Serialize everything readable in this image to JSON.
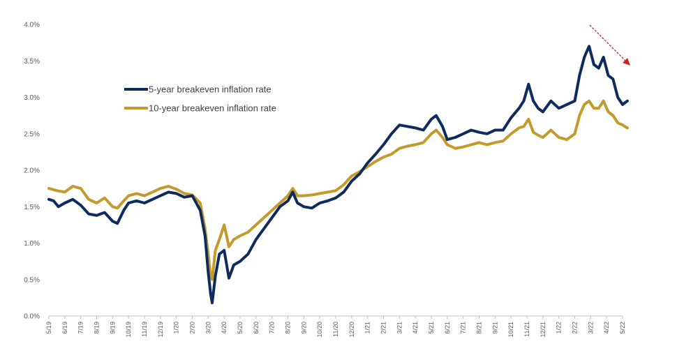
{
  "chart_data": {
    "type": "line",
    "title": "",
    "xlabel": "",
    "ylabel": "",
    "ylim": [
      0,
      4.0
    ],
    "y_ticks": [
      "0.0%",
      "0.5%",
      "1.0%",
      "1.5%",
      "2.0%",
      "2.5%",
      "3.0%",
      "3.5%",
      "4.0%"
    ],
    "x_ticks": [
      "5/19",
      "6/19",
      "7/19",
      "8/19",
      "9/19",
      "10/19",
      "11/19",
      "12/19",
      "1/20",
      "2/20",
      "3/20",
      "4/20",
      "5/20",
      "6/20",
      "7/20",
      "8/20",
      "9/20",
      "10/20",
      "11/20",
      "12/20",
      "1/21",
      "2/21",
      "3/21",
      "4/21",
      "5/21",
      "6/21",
      "7/21",
      "8/21",
      "9/21",
      "10/21",
      "11/21",
      "12/21",
      "1/22",
      "2/22",
      "3/22",
      "4/22",
      "5/22"
    ],
    "legend_position": "upper-left",
    "series": [
      {
        "name": "5-year breakeven inflation rate",
        "color": "#0d2b5e",
        "points": [
          [
            0,
            1.6
          ],
          [
            0.3,
            1.58
          ],
          [
            0.6,
            1.5
          ],
          [
            1,
            1.55
          ],
          [
            1.5,
            1.6
          ],
          [
            2,
            1.52
          ],
          [
            2.5,
            1.4
          ],
          [
            3,
            1.38
          ],
          [
            3.5,
            1.42
          ],
          [
            4,
            1.3
          ],
          [
            4.3,
            1.27
          ],
          [
            4.7,
            1.45
          ],
          [
            5,
            1.55
          ],
          [
            5.5,
            1.58
          ],
          [
            6,
            1.55
          ],
          [
            6.5,
            1.6
          ],
          [
            7,
            1.65
          ],
          [
            7.5,
            1.7
          ],
          [
            8,
            1.68
          ],
          [
            8.5,
            1.63
          ],
          [
            9,
            1.65
          ],
          [
            9.5,
            1.45
          ],
          [
            9.8,
            1.1
          ],
          [
            10.0,
            0.6
          ],
          [
            10.15,
            0.3
          ],
          [
            10.25,
            0.18
          ],
          [
            10.45,
            0.55
          ],
          [
            10.7,
            0.85
          ],
          [
            11,
            0.9
          ],
          [
            11.3,
            0.52
          ],
          [
            11.6,
            0.7
          ],
          [
            12,
            0.75
          ],
          [
            12.5,
            0.85
          ],
          [
            13,
            1.05
          ],
          [
            13.5,
            1.2
          ],
          [
            14,
            1.35
          ],
          [
            14.5,
            1.5
          ],
          [
            15,
            1.58
          ],
          [
            15.3,
            1.7
          ],
          [
            15.6,
            1.55
          ],
          [
            16,
            1.5
          ],
          [
            16.5,
            1.48
          ],
          [
            17,
            1.55
          ],
          [
            17.5,
            1.58
          ],
          [
            18,
            1.62
          ],
          [
            18.5,
            1.7
          ],
          [
            19,
            1.85
          ],
          [
            19.5,
            1.95
          ],
          [
            20,
            2.1
          ],
          [
            20.5,
            2.22
          ],
          [
            21,
            2.35
          ],
          [
            21.5,
            2.5
          ],
          [
            22,
            2.62
          ],
          [
            22.5,
            2.6
          ],
          [
            23,
            2.58
          ],
          [
            23.5,
            2.55
          ],
          [
            24,
            2.7
          ],
          [
            24.3,
            2.75
          ],
          [
            24.7,
            2.6
          ],
          [
            25,
            2.42
          ],
          [
            25.5,
            2.45
          ],
          [
            26,
            2.5
          ],
          [
            26.5,
            2.55
          ],
          [
            27,
            2.52
          ],
          [
            27.5,
            2.5
          ],
          [
            28,
            2.55
          ],
          [
            28.5,
            2.55
          ],
          [
            29,
            2.72
          ],
          [
            29.5,
            2.85
          ],
          [
            29.8,
            2.95
          ],
          [
            30.1,
            3.18
          ],
          [
            30.4,
            2.95
          ],
          [
            30.7,
            2.85
          ],
          [
            31,
            2.8
          ],
          [
            31.5,
            2.95
          ],
          [
            32,
            2.85
          ],
          [
            32.5,
            2.9
          ],
          [
            33,
            2.95
          ],
          [
            33.3,
            3.3
          ],
          [
            33.6,
            3.55
          ],
          [
            33.9,
            3.7
          ],
          [
            34.2,
            3.45
          ],
          [
            34.5,
            3.4
          ],
          [
            34.8,
            3.55
          ],
          [
            35.1,
            3.3
          ],
          [
            35.4,
            3.25
          ],
          [
            35.7,
            3.0
          ],
          [
            36,
            2.9
          ],
          [
            36.3,
            2.95
          ]
        ]
      },
      {
        "name": "10-year breakeven inflation rate",
        "color": "#c49a2c",
        "points": [
          [
            0,
            1.75
          ],
          [
            0.5,
            1.72
          ],
          [
            1,
            1.7
          ],
          [
            1.5,
            1.78
          ],
          [
            2,
            1.75
          ],
          [
            2.5,
            1.6
          ],
          [
            3,
            1.55
          ],
          [
            3.5,
            1.62
          ],
          [
            4,
            1.5
          ],
          [
            4.3,
            1.48
          ],
          [
            4.7,
            1.58
          ],
          [
            5,
            1.65
          ],
          [
            5.5,
            1.68
          ],
          [
            6,
            1.65
          ],
          [
            6.5,
            1.7
          ],
          [
            7,
            1.75
          ],
          [
            7.5,
            1.78
          ],
          [
            8,
            1.74
          ],
          [
            8.5,
            1.68
          ],
          [
            9,
            1.66
          ],
          [
            9.5,
            1.55
          ],
          [
            9.8,
            1.2
          ],
          [
            10.0,
            0.85
          ],
          [
            10.15,
            0.55
          ],
          [
            10.25,
            0.5
          ],
          [
            10.45,
            0.9
          ],
          [
            10.7,
            1.05
          ],
          [
            11,
            1.25
          ],
          [
            11.3,
            0.95
          ],
          [
            11.6,
            1.05
          ],
          [
            12,
            1.1
          ],
          [
            12.5,
            1.15
          ],
          [
            13,
            1.25
          ],
          [
            13.5,
            1.35
          ],
          [
            14,
            1.45
          ],
          [
            14.5,
            1.55
          ],
          [
            15,
            1.65
          ],
          [
            15.3,
            1.75
          ],
          [
            15.6,
            1.65
          ],
          [
            16,
            1.65
          ],
          [
            16.5,
            1.66
          ],
          [
            17,
            1.68
          ],
          [
            17.5,
            1.7
          ],
          [
            18,
            1.72
          ],
          [
            18.5,
            1.8
          ],
          [
            19,
            1.92
          ],
          [
            19.5,
            1.98
          ],
          [
            20,
            2.05
          ],
          [
            20.5,
            2.12
          ],
          [
            21,
            2.18
          ],
          [
            21.5,
            2.22
          ],
          [
            22,
            2.3
          ],
          [
            22.5,
            2.33
          ],
          [
            23,
            2.35
          ],
          [
            23.5,
            2.38
          ],
          [
            24,
            2.5
          ],
          [
            24.3,
            2.55
          ],
          [
            24.7,
            2.45
          ],
          [
            25,
            2.35
          ],
          [
            25.5,
            2.3
          ],
          [
            26,
            2.32
          ],
          [
            26.5,
            2.35
          ],
          [
            27,
            2.38
          ],
          [
            27.5,
            2.35
          ],
          [
            28,
            2.38
          ],
          [
            28.5,
            2.4
          ],
          [
            29,
            2.5
          ],
          [
            29.5,
            2.58
          ],
          [
            29.8,
            2.6
          ],
          [
            30.1,
            2.7
          ],
          [
            30.4,
            2.52
          ],
          [
            30.7,
            2.48
          ],
          [
            31,
            2.45
          ],
          [
            31.5,
            2.55
          ],
          [
            32,
            2.45
          ],
          [
            32.5,
            2.42
          ],
          [
            33,
            2.5
          ],
          [
            33.3,
            2.75
          ],
          [
            33.6,
            2.9
          ],
          [
            33.9,
            2.95
          ],
          [
            34.2,
            2.85
          ],
          [
            34.5,
            2.85
          ],
          [
            34.8,
            2.95
          ],
          [
            35.1,
            2.8
          ],
          [
            35.4,
            2.75
          ],
          [
            35.7,
            2.65
          ],
          [
            36,
            2.62
          ],
          [
            36.3,
            2.58
          ]
        ]
      }
    ],
    "annotations": [
      {
        "type": "arrow",
        "description": "red dashed downward trend arrow",
        "color": "#cc2222"
      }
    ]
  }
}
